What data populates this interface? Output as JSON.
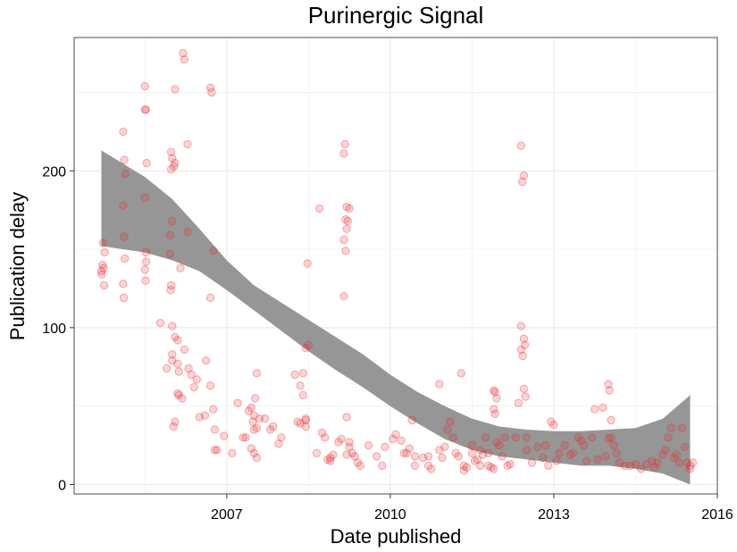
{
  "chart_data": {
    "type": "scatter",
    "title": "Purinergic Signal",
    "xlabel": "Date published",
    "ylabel": "Publication delay",
    "xlim": [
      2004.2,
      2016.0
    ],
    "ylim": [
      -6,
      285
    ],
    "x_ticks": [
      2007,
      2010,
      2013,
      2016
    ],
    "x_tick_labels": [
      "2007",
      "2010",
      "2013",
      "2016"
    ],
    "y_ticks": [
      0,
      100,
      200
    ],
    "y_tick_labels": [
      "0",
      "100",
      "200"
    ],
    "grid": true,
    "colors": {
      "points": "#e8262b",
      "band": "#969696",
      "grid": "#ebebeb",
      "frame": "#7f7f7f"
    },
    "smooth_band": {
      "x": [
        2004.7,
        2005.5,
        2006.0,
        2006.5,
        2007.0,
        2007.5,
        2008.0,
        2008.5,
        2009.0,
        2009.5,
        2010.0,
        2010.5,
        2011.0,
        2011.5,
        2012.0,
        2012.5,
        2013.0,
        2013.5,
        2014.0,
        2014.5,
        2015.0,
        2015.5
      ],
      "upper": [
        213,
        196,
        182,
        163,
        143,
        127,
        116,
        105,
        94,
        83,
        70,
        59,
        50,
        42,
        37,
        35,
        34,
        34,
        35,
        36,
        42,
        57
      ],
      "lower": [
        152,
        148,
        143,
        136,
        124,
        111,
        98,
        85,
        73,
        62,
        50,
        39,
        29,
        22,
        18,
        16,
        14,
        12,
        12,
        10,
        7,
        0
      ]
    },
    "series": [
      {
        "points": [
          [
            2004.7,
            136
          ],
          [
            2004.72,
            140
          ],
          [
            2004.74,
            138
          ],
          [
            2004.76,
            148
          ],
          [
            2004.73,
            154
          ],
          [
            2004.75,
            127
          ],
          [
            2004.71,
            134
          ],
          [
            2005.1,
            225
          ],
          [
            2005.12,
            207
          ],
          [
            2005.14,
            198
          ],
          [
            2005.1,
            178
          ],
          [
            2005.12,
            158
          ],
          [
            2005.13,
            144
          ],
          [
            2005.1,
            128
          ],
          [
            2005.11,
            119
          ],
          [
            2005.5,
            254
          ],
          [
            2005.5,
            239
          ],
          [
            2005.52,
            239
          ],
          [
            2005.53,
            205
          ],
          [
            2005.5,
            183
          ],
          [
            2005.52,
            148
          ],
          [
            2005.52,
            142
          ],
          [
            2005.5,
            137
          ],
          [
            2005.51,
            130
          ],
          [
            2005.78,
            103
          ],
          [
            2005.9,
            74
          ],
          [
            2005.98,
            212
          ],
          [
            2005.98,
            201
          ],
          [
            2006.0,
            208
          ],
          [
            2006.05,
            205
          ],
          [
            2006.03,
            203
          ],
          [
            2006.0,
            168
          ],
          [
            2005.96,
            159
          ],
          [
            2005.96,
            147
          ],
          [
            2005.98,
            127
          ],
          [
            2005.97,
            124
          ],
          [
            2006.05,
            252
          ],
          [
            2006.0,
            101
          ],
          [
            2006.05,
            94
          ],
          [
            2006.1,
            92
          ],
          [
            2006.0,
            83
          ],
          [
            2006.0,
            79
          ],
          [
            2006.1,
            77
          ],
          [
            2006.12,
            72
          ],
          [
            2006.02,
            37
          ],
          [
            2006.05,
            40
          ],
          [
            2006.1,
            58
          ],
          [
            2006.12,
            57
          ],
          [
            2006.18,
            55
          ],
          [
            2006.15,
            138
          ],
          [
            2006.2,
            275
          ],
          [
            2006.22,
            271
          ],
          [
            2006.28,
            217
          ],
          [
            2006.28,
            161
          ],
          [
            2006.22,
            86
          ],
          [
            2006.3,
            74
          ],
          [
            2006.35,
            70
          ],
          [
            2006.4,
            62
          ],
          [
            2006.45,
            67
          ],
          [
            2006.5,
            43
          ],
          [
            2006.6,
            44
          ],
          [
            2006.62,
            79
          ],
          [
            2006.7,
            63
          ],
          [
            2006.7,
            253
          ],
          [
            2006.72,
            250
          ],
          [
            2006.75,
            149
          ],
          [
            2006.7,
            119
          ],
          [
            2006.75,
            48
          ],
          [
            2006.78,
            35
          ],
          [
            2006.78,
            22
          ],
          [
            2006.82,
            22
          ],
          [
            2006.95,
            31
          ],
          [
            2007.1,
            20
          ],
          [
            2007.2,
            52
          ],
          [
            2007.3,
            30
          ],
          [
            2007.35,
            30
          ],
          [
            2007.4,
            47
          ],
          [
            2007.45,
            49
          ],
          [
            2007.48,
            40
          ],
          [
            2007.5,
            44
          ],
          [
            2007.52,
            55
          ],
          [
            2007.55,
            71
          ],
          [
            2007.5,
            35
          ],
          [
            2007.55,
            36
          ],
          [
            2007.45,
            23
          ],
          [
            2007.5,
            20
          ],
          [
            2007.55,
            17
          ],
          [
            2007.6,
            42
          ],
          [
            2007.7,
            42
          ],
          [
            2007.8,
            35
          ],
          [
            2007.85,
            37
          ],
          [
            2007.95,
            26
          ],
          [
            2008.0,
            30
          ],
          [
            2008.25,
            70
          ],
          [
            2008.35,
            63
          ],
          [
            2008.3,
            40
          ],
          [
            2008.35,
            39
          ],
          [
            2008.4,
            71
          ],
          [
            2008.4,
            57
          ],
          [
            2008.45,
            42
          ],
          [
            2008.45,
            37
          ],
          [
            2008.45,
            87
          ],
          [
            2008.48,
            141
          ],
          [
            2008.5,
            89
          ],
          [
            2008.45,
            41
          ],
          [
            2008.65,
            20
          ],
          [
            2008.7,
            176
          ],
          [
            2008.75,
            33
          ],
          [
            2008.8,
            30
          ],
          [
            2008.85,
            16
          ],
          [
            2008.9,
            15
          ],
          [
            2008.9,
            17
          ],
          [
            2008.95,
            19
          ],
          [
            2009.05,
            27
          ],
          [
            2009.1,
            29
          ],
          [
            2009.15,
            211
          ],
          [
            2009.17,
            217
          ],
          [
            2009.2,
            177
          ],
          [
            2009.25,
            176
          ],
          [
            2009.22,
            168
          ],
          [
            2009.18,
            169
          ],
          [
            2009.2,
            163
          ],
          [
            2009.15,
            156
          ],
          [
            2009.18,
            149
          ],
          [
            2009.15,
            120
          ],
          [
            2009.2,
            43
          ],
          [
            2009.25,
            27
          ],
          [
            2009.25,
            24
          ],
          [
            2009.2,
            19
          ],
          [
            2009.35,
            18
          ],
          [
            2009.3,
            20
          ],
          [
            2009.4,
            14
          ],
          [
            2009.45,
            12
          ],
          [
            2009.6,
            25
          ],
          [
            2009.75,
            18
          ],
          [
            2009.85,
            12
          ],
          [
            2009.9,
            24
          ],
          [
            2010.05,
            29
          ],
          [
            2010.1,
            32
          ],
          [
            2010.2,
            28
          ],
          [
            2010.25,
            20
          ],
          [
            2010.3,
            20
          ],
          [
            2010.35,
            23
          ],
          [
            2010.4,
            41
          ],
          [
            2010.45,
            18
          ],
          [
            2010.45,
            12
          ],
          [
            2010.6,
            17
          ],
          [
            2010.7,
            12
          ],
          [
            2010.7,
            18
          ],
          [
            2010.75,
            10
          ],
          [
            2010.9,
            64
          ],
          [
            2010.9,
            22
          ],
          [
            2010.95,
            17
          ],
          [
            2011.0,
            24
          ],
          [
            2011.05,
            35
          ],
          [
            2011.1,
            40
          ],
          [
            2011.15,
            30
          ],
          [
            2011.2,
            20
          ],
          [
            2011.25,
            18
          ],
          [
            2011.3,
            71
          ],
          [
            2011.35,
            12
          ],
          [
            2011.35,
            9
          ],
          [
            2011.4,
            11
          ],
          [
            2011.5,
            25
          ],
          [
            2011.5,
            20
          ],
          [
            2011.55,
            15
          ],
          [
            2011.6,
            16
          ],
          [
            2011.65,
            12
          ],
          [
            2011.65,
            22
          ],
          [
            2011.7,
            19
          ],
          [
            2011.75,
            30
          ],
          [
            2011.8,
            20
          ],
          [
            2011.8,
            12
          ],
          [
            2011.85,
            11
          ],
          [
            2011.9,
            10
          ],
          [
            2011.9,
            60
          ],
          [
            2011.92,
            59
          ],
          [
            2011.95,
            55
          ],
          [
            2011.9,
            48
          ],
          [
            2011.92,
            45
          ],
          [
            2011.95,
            27
          ],
          [
            2012.0,
            25
          ],
          [
            2012.05,
            18
          ],
          [
            2012.1,
            30
          ],
          [
            2012.15,
            12
          ],
          [
            2012.2,
            13
          ],
          [
            2012.3,
            30
          ],
          [
            2012.35,
            52
          ],
          [
            2012.4,
            216
          ],
          [
            2012.42,
            193
          ],
          [
            2012.45,
            197
          ],
          [
            2012.4,
            101
          ],
          [
            2012.45,
            93
          ],
          [
            2012.47,
            89
          ],
          [
            2012.4,
            86
          ],
          [
            2012.43,
            82
          ],
          [
            2012.45,
            61
          ],
          [
            2012.48,
            56
          ],
          [
            2012.5,
            30
          ],
          [
            2012.5,
            22
          ],
          [
            2012.6,
            14
          ],
          [
            2012.7,
            24
          ],
          [
            2012.8,
            17
          ],
          [
            2012.85,
            25
          ],
          [
            2012.9,
            12
          ],
          [
            2012.95,
            40
          ],
          [
            2013.0,
            38
          ],
          [
            2013.05,
            15
          ],
          [
            2013.1,
            20
          ],
          [
            2013.2,
            25
          ],
          [
            2013.3,
            19
          ],
          [
            2013.35,
            20
          ],
          [
            2013.45,
            30
          ],
          [
            2013.5,
            28
          ],
          [
            2013.55,
            25
          ],
          [
            2013.6,
            15
          ],
          [
            2013.7,
            30
          ],
          [
            2013.75,
            48
          ],
          [
            2013.8,
            16
          ],
          [
            2013.9,
            49
          ],
          [
            2013.95,
            18
          ],
          [
            2014.0,
            64
          ],
          [
            2014.02,
            60
          ],
          [
            2014.05,
            41
          ],
          [
            2014.05,
            30
          ],
          [
            2014.0,
            29
          ],
          [
            2014.1,
            25
          ],
          [
            2014.15,
            20
          ],
          [
            2014.2,
            14
          ],
          [
            2014.3,
            12
          ],
          [
            2014.4,
            12
          ],
          [
            2014.5,
            13
          ],
          [
            2014.6,
            10
          ],
          [
            2014.7,
            13
          ],
          [
            2014.8,
            15
          ],
          [
            2014.85,
            11
          ],
          [
            2014.9,
            14
          ],
          [
            2015.0,
            19
          ],
          [
            2015.05,
            22
          ],
          [
            2015.1,
            30
          ],
          [
            2015.15,
            36
          ],
          [
            2015.2,
            17
          ],
          [
            2015.25,
            19
          ],
          [
            2015.3,
            14
          ],
          [
            2015.35,
            36
          ],
          [
            2015.4,
            24
          ],
          [
            2015.45,
            14
          ],
          [
            2015.5,
            12
          ],
          [
            2015.5,
            10
          ],
          [
            2015.55,
            14
          ]
        ]
      }
    ]
  }
}
